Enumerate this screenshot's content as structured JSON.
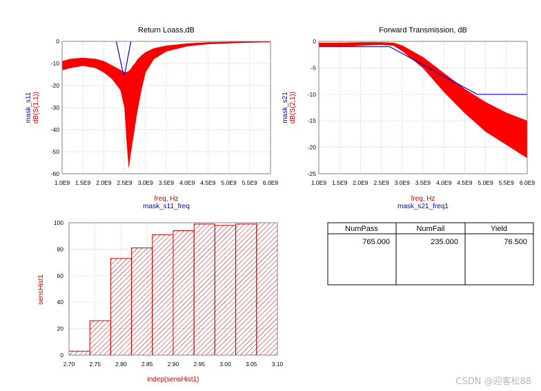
{
  "colors": {
    "trace": "#ff0000",
    "mask": "#0000cc",
    "hist_fill": "#ffffff",
    "hist_hatch": "#cc0000"
  },
  "watermark": "CSDN @迎客松88",
  "chart_data": [
    {
      "id": "s11",
      "type": "line",
      "title": "Return Loass,dB",
      "xlabel_red": "freq, Hz",
      "xlabel_blue": "mask_s11_freq",
      "ylabel_red": "dB(S(1,1))",
      "ylabel_blue": "mask_s11",
      "xlim": [
        1.0,
        6.0
      ],
      "ylim": [
        -60,
        0
      ],
      "x_ticks": [
        "1.0E9",
        "1.5E9",
        "2.0E9",
        "2.5E9",
        "3.0E9",
        "3.5E9",
        "4.0E9",
        "4.5E9",
        "5.0E9",
        "5.5E9",
        "6.0E9"
      ],
      "y_ticks": [
        "0",
        "-10",
        "-20",
        "-30",
        "-40",
        "-50",
        "-60"
      ],
      "band_x": [
        1.0,
        1.2,
        1.5,
        1.8,
        2.0,
        2.2,
        2.4,
        2.5,
        2.55,
        2.6,
        2.65,
        2.7,
        2.75,
        2.8,
        2.9,
        3.0,
        3.2,
        3.5,
        4.0,
        4.5,
        5.0,
        5.5,
        6.0
      ],
      "band_upper": [
        -9,
        -8,
        -7.5,
        -8,
        -9,
        -11,
        -13,
        -14,
        -14,
        -13.5,
        -12.5,
        -11,
        -10,
        -8.5,
        -6.5,
        -5,
        -3.2,
        -2,
        -1,
        -0.5,
        -0.3,
        -0.2,
        -0.1
      ],
      "band_lower": [
        -13,
        -12,
        -11,
        -12,
        -14,
        -17,
        -22,
        -30,
        -45,
        -57,
        -50,
        -44,
        -38,
        -32,
        -22,
        -14,
        -8,
        -4.5,
        -2.2,
        -1.2,
        -0.8,
        -0.5,
        -0.3
      ],
      "mask": [
        [
          2.3,
          0
        ],
        [
          2.47,
          -15
        ],
        [
          2.5,
          -15
        ],
        [
          2.65,
          0
        ]
      ]
    },
    {
      "id": "s21",
      "type": "line",
      "title": "Forward Transmission, dB",
      "xlabel_red": "freq, Hz",
      "xlabel_blue": "mask_s21_freq1",
      "ylabel_red": "dB(S(2,1))",
      "ylabel_blue": "mask_s21",
      "xlim": [
        1.0,
        6.0
      ],
      "ylim": [
        -25,
        0
      ],
      "x_ticks": [
        "1.0E9",
        "1.5E9",
        "2.0E9",
        "2.5E9",
        "3.0E9",
        "3.5E9",
        "4.0E9",
        "4.5E9",
        "5.0E9",
        "5.5E9",
        "6.0E9"
      ],
      "y_ticks": [
        "0",
        "-5",
        "-10",
        "-15",
        "-20",
        "-25"
      ],
      "band_x": [
        1.0,
        1.5,
        2.0,
        2.5,
        2.8,
        3.0,
        3.5,
        4.0,
        4.5,
        5.0,
        5.5,
        6.0
      ],
      "band_upper": [
        -0.3,
        -0.3,
        -0.2,
        -0.2,
        -0.3,
        -0.8,
        -3,
        -6,
        -9,
        -11.5,
        -13.5,
        -15
      ],
      "band_lower": [
        -0.9,
        -1.0,
        -0.8,
        -0.6,
        -0.8,
        -1.8,
        -5,
        -9.5,
        -13.5,
        -17,
        -19.5,
        -22
      ],
      "mask": [
        [
          1.0,
          -1
        ],
        [
          2.7,
          -1
        ],
        [
          4.8,
          -10
        ],
        [
          6.0,
          -10
        ]
      ]
    },
    {
      "id": "hist",
      "type": "bar",
      "xlabel": "indep(sensHist1)",
      "ylabel": "sensHist1",
      "xlim": [
        2.7,
        3.1
      ],
      "ylim": [
        0,
        100
      ],
      "x_ticks": [
        "2.70",
        "2.75",
        "2.80",
        "2.85",
        "2.90",
        "2.95",
        "3.00",
        "3.05",
        "3.10"
      ],
      "y_ticks": [
        "0",
        "20",
        "40",
        "60",
        "80",
        "100"
      ],
      "bin_edges": [
        2.7,
        2.74,
        2.78,
        2.82,
        2.86,
        2.9,
        2.94,
        2.98,
        3.02,
        3.06,
        3.1
      ],
      "values": [
        3,
        26,
        73,
        81,
        91,
        94,
        99,
        98,
        99,
        100
      ]
    },
    {
      "id": "yield",
      "type": "table",
      "headers": [
        "NumPass",
        "NumFail",
        "Yield"
      ],
      "rows": [
        [
          "765.000",
          "235.000",
          "76.500"
        ]
      ]
    }
  ]
}
